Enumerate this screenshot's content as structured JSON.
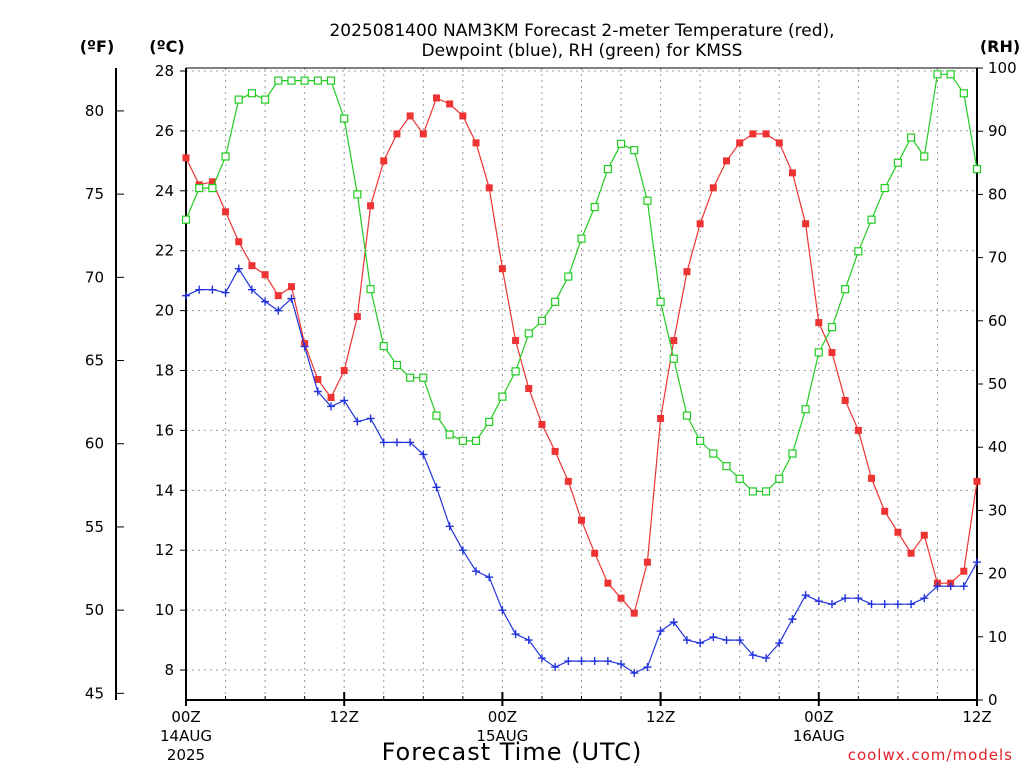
{
  "chart_data": {
    "type": "line",
    "title_line1": "2025081400 NAM3KM Forecast 2-meter Temperature (red),",
    "title_line2": "Dewpoint (blue), RH (green) for KMSS",
    "xlabel": "Forecast Time (UTC)",
    "credit": "coolwx.com/models",
    "units": {
      "left_outer": "(ºF)",
      "left_inner": "(ºC)",
      "right": "(RH)"
    },
    "x_range_hours": [
      0,
      60
    ],
    "x_ticks": [
      {
        "hour": 0,
        "label": "00Z",
        "date": "14AUG",
        "year": "2025"
      },
      {
        "hour": 12,
        "label": "12Z",
        "date": "",
        "year": ""
      },
      {
        "hour": 24,
        "label": "00Z",
        "date": "15AUG",
        "year": ""
      },
      {
        "hour": 36,
        "label": "12Z",
        "date": "",
        "year": ""
      },
      {
        "hour": 48,
        "label": "00Z",
        "date": "16AUG",
        "year": ""
      },
      {
        "hour": 60,
        "label": "12Z",
        "date": "",
        "year": ""
      }
    ],
    "celsius_axis": {
      "min": 7,
      "max": 28.1,
      "ticks": [
        8,
        10,
        12,
        14,
        16,
        18,
        20,
        22,
        24,
        26,
        28
      ]
    },
    "fahrenheit_axis": {
      "ticks": [
        45,
        50,
        55,
        60,
        65,
        70,
        75,
        80
      ]
    },
    "rh_axis": {
      "min": 0,
      "max": 100,
      "ticks": [
        0,
        10,
        20,
        30,
        40,
        50,
        60,
        70,
        80,
        90,
        100
      ]
    },
    "grid": true,
    "series": [
      {
        "name": "Temperature",
        "color": "#ee3333",
        "marker": "filled-square",
        "axis": "celsius",
        "hours": [
          0,
          1,
          2,
          3,
          4,
          5,
          6,
          7,
          8,
          9,
          10,
          11,
          12,
          13,
          14,
          15,
          16,
          17,
          18,
          19,
          20,
          21,
          22,
          23,
          24,
          25,
          26,
          27,
          28,
          29,
          30,
          31,
          32,
          33,
          34,
          35,
          36,
          37,
          38,
          39,
          40,
          41,
          42,
          43,
          44,
          45,
          46,
          47,
          48,
          49,
          50,
          51,
          52,
          53,
          54,
          55,
          56,
          57,
          58,
          59,
          60
        ],
        "values": [
          25.1,
          24.2,
          24.3,
          23.3,
          22.3,
          21.5,
          21.2,
          20.5,
          20.8,
          18.9,
          17.7,
          17.1,
          18.0,
          19.8,
          23.5,
          25.0,
          25.9,
          26.5,
          25.9,
          27.1,
          26.9,
          26.5,
          25.6,
          24.1,
          21.4,
          19.0,
          17.4,
          16.2,
          15.3,
          14.3,
          13.0,
          11.9,
          10.9,
          10.4,
          9.9,
          11.6,
          16.4,
          19.0,
          21.3,
          22.9,
          24.1,
          25.0,
          25.6,
          25.9,
          25.9,
          25.6,
          24.6,
          22.9,
          19.6,
          18.6,
          17.0,
          16.0,
          14.4,
          13.3,
          12.6,
          11.9,
          12.5,
          10.9,
          10.9,
          11.3,
          14.3
        ]
      },
      {
        "name": "Dewpoint",
        "color": "#2233dd",
        "marker": "plus",
        "axis": "celsius",
        "hours": [
          0,
          1,
          2,
          3,
          4,
          5,
          6,
          7,
          8,
          9,
          10,
          11,
          12,
          13,
          14,
          15,
          16,
          17,
          18,
          19,
          20,
          21,
          22,
          23,
          24,
          25,
          26,
          27,
          28,
          29,
          30,
          31,
          32,
          33,
          34,
          35,
          36,
          37,
          38,
          39,
          40,
          41,
          42,
          43,
          44,
          45,
          46,
          47,
          48,
          49,
          50,
          51,
          52,
          53,
          54,
          55,
          56,
          57,
          58,
          59,
          60
        ],
        "values": [
          20.5,
          20.7,
          20.7,
          20.6,
          21.4,
          20.7,
          20.3,
          20.0,
          20.4,
          18.8,
          17.3,
          16.8,
          17.0,
          16.3,
          16.4,
          15.6,
          15.6,
          15.6,
          15.2,
          14.1,
          12.8,
          12.0,
          11.3,
          11.1,
          10.0,
          9.2,
          9.0,
          8.4,
          8.1,
          8.3,
          8.3,
          8.3,
          8.3,
          8.2,
          7.9,
          8.1,
          9.3,
          9.6,
          9.0,
          8.9,
          9.1,
          9.0,
          9.0,
          8.5,
          8.4,
          8.9,
          9.7,
          10.5,
          10.3,
          10.2,
          10.4,
          10.4,
          10.2,
          10.2,
          10.2,
          10.2,
          10.4,
          10.8,
          10.8,
          10.8,
          11.6
        ]
      },
      {
        "name": "RH",
        "color": "#22cc22",
        "marker": "open-square",
        "axis": "rh",
        "hours": [
          0,
          1,
          2,
          3,
          4,
          5,
          6,
          7,
          8,
          9,
          10,
          11,
          12,
          13,
          14,
          15,
          16,
          17,
          18,
          19,
          20,
          21,
          22,
          23,
          24,
          25,
          26,
          27,
          28,
          29,
          30,
          31,
          32,
          33,
          34,
          35,
          36,
          37,
          38,
          39,
          40,
          41,
          42,
          43,
          44,
          45,
          46,
          47,
          48,
          49,
          50,
          51,
          52,
          53,
          54,
          55,
          56,
          57,
          58,
          59,
          60
        ],
        "values": [
          76,
          81,
          81,
          86,
          95,
          96,
          95,
          98,
          98,
          98,
          98,
          98,
          92,
          80,
          65,
          56,
          53,
          51,
          51,
          45,
          42,
          41,
          41,
          44,
          48,
          52,
          58,
          60,
          63,
          67,
          73,
          78,
          84,
          88,
          87,
          79,
          63,
          54,
          45,
          41,
          39,
          37,
          35,
          33,
          33,
          35,
          39,
          46,
          55,
          59,
          65,
          71,
          76,
          81,
          85,
          89,
          86,
          99,
          99,
          96,
          84
        ]
      }
    ]
  }
}
